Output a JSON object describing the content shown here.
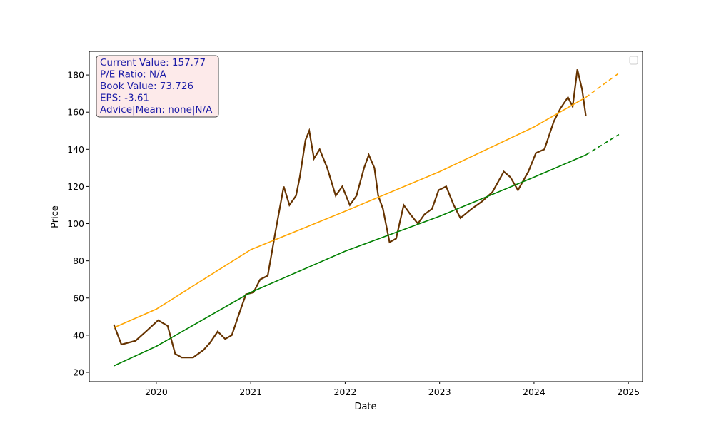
{
  "chart_data": {
    "type": "line",
    "title": "",
    "xlabel": "Date",
    "ylabel": "Price",
    "xlim": [
      2019.29,
      2025.15
    ],
    "ylim": [
      15,
      192.7
    ],
    "xticks": [
      2020,
      2021,
      2022,
      2023,
      2024,
      2025
    ],
    "yticks": [
      20,
      40,
      60,
      80,
      100,
      120,
      140,
      160,
      180
    ],
    "grid": false,
    "legend": {
      "placement": "top-right",
      "entries": []
    },
    "info_box": [
      "Current Value: 157.77",
      "P/E Ratio: N/A",
      "Book Value: 73.726",
      "EPS: -3.61",
      "Advice|Mean: none|N/A"
    ],
    "series": [
      {
        "color": "#663300",
        "style": "solid",
        "x": [
          2019.55,
          2019.63,
          2019.78,
          2019.89,
          2020.02,
          2020.12,
          2020.2,
          2020.27,
          2020.39,
          2020.5,
          2020.57,
          2020.65,
          2020.73,
          2020.8,
          2020.88,
          2020.95,
          2021.03,
          2021.1,
          2021.18,
          2021.26,
          2021.35,
          2021.41,
          2021.48,
          2021.52,
          2021.58,
          2021.62,
          2021.67,
          2021.73,
          2021.81,
          2021.9,
          2021.97,
          2022.05,
          2022.12,
          2022.2,
          2022.25,
          2022.31,
          2022.35,
          2022.4,
          2022.47,
          2022.54,
          2022.62,
          2022.69,
          2022.77,
          2022.84,
          2022.92,
          2022.99,
          2023.07,
          2023.15,
          2023.22,
          2023.34,
          2023.45,
          2023.56,
          2023.68,
          2023.75,
          2023.83,
          2023.94,
          2024.02,
          2024.11,
          2024.21,
          2024.28,
          2024.36,
          2024.41,
          2024.46,
          2024.51,
          2024.55
        ],
        "y": [
          45.7,
          35,
          37,
          42,
          48,
          45,
          30,
          28,
          28,
          32,
          36,
          42,
          38,
          40,
          52,
          62,
          63,
          70,
          72,
          95,
          120,
          110,
          115,
          125,
          145,
          150,
          135,
          140,
          130,
          115,
          120,
          110,
          115,
          130,
          137,
          130,
          115,
          108,
          90,
          92,
          110,
          105,
          100,
          105,
          108,
          118,
          120,
          110,
          103,
          108,
          112,
          117,
          128,
          125,
          118,
          128,
          138,
          140,
          155,
          162,
          168,
          163,
          183,
          172,
          157.77
        ]
      },
      {
        "color": "#ffa500",
        "style": "solid",
        "x": [
          2019.55,
          2020,
          2021,
          2022,
          2023,
          2024,
          2024.55
        ],
        "y": [
          44,
          54,
          86,
          106.7,
          128,
          152,
          168
        ]
      },
      {
        "color": "#ffa500",
        "style": "dashed",
        "x": [
          2024.55,
          2024.9
        ],
        "y": [
          168,
          181
        ]
      },
      {
        "color": "#008000",
        "style": "solid",
        "x": [
          2019.55,
          2020,
          2021,
          2022,
          2023,
          2024,
          2024.55
        ],
        "y": [
          23.5,
          34,
          63,
          85.2,
          104,
          125,
          137
        ]
      },
      {
        "color": "#008000",
        "style": "dashed",
        "x": [
          2024.55,
          2024.9
        ],
        "y": [
          137,
          148
        ]
      }
    ]
  }
}
